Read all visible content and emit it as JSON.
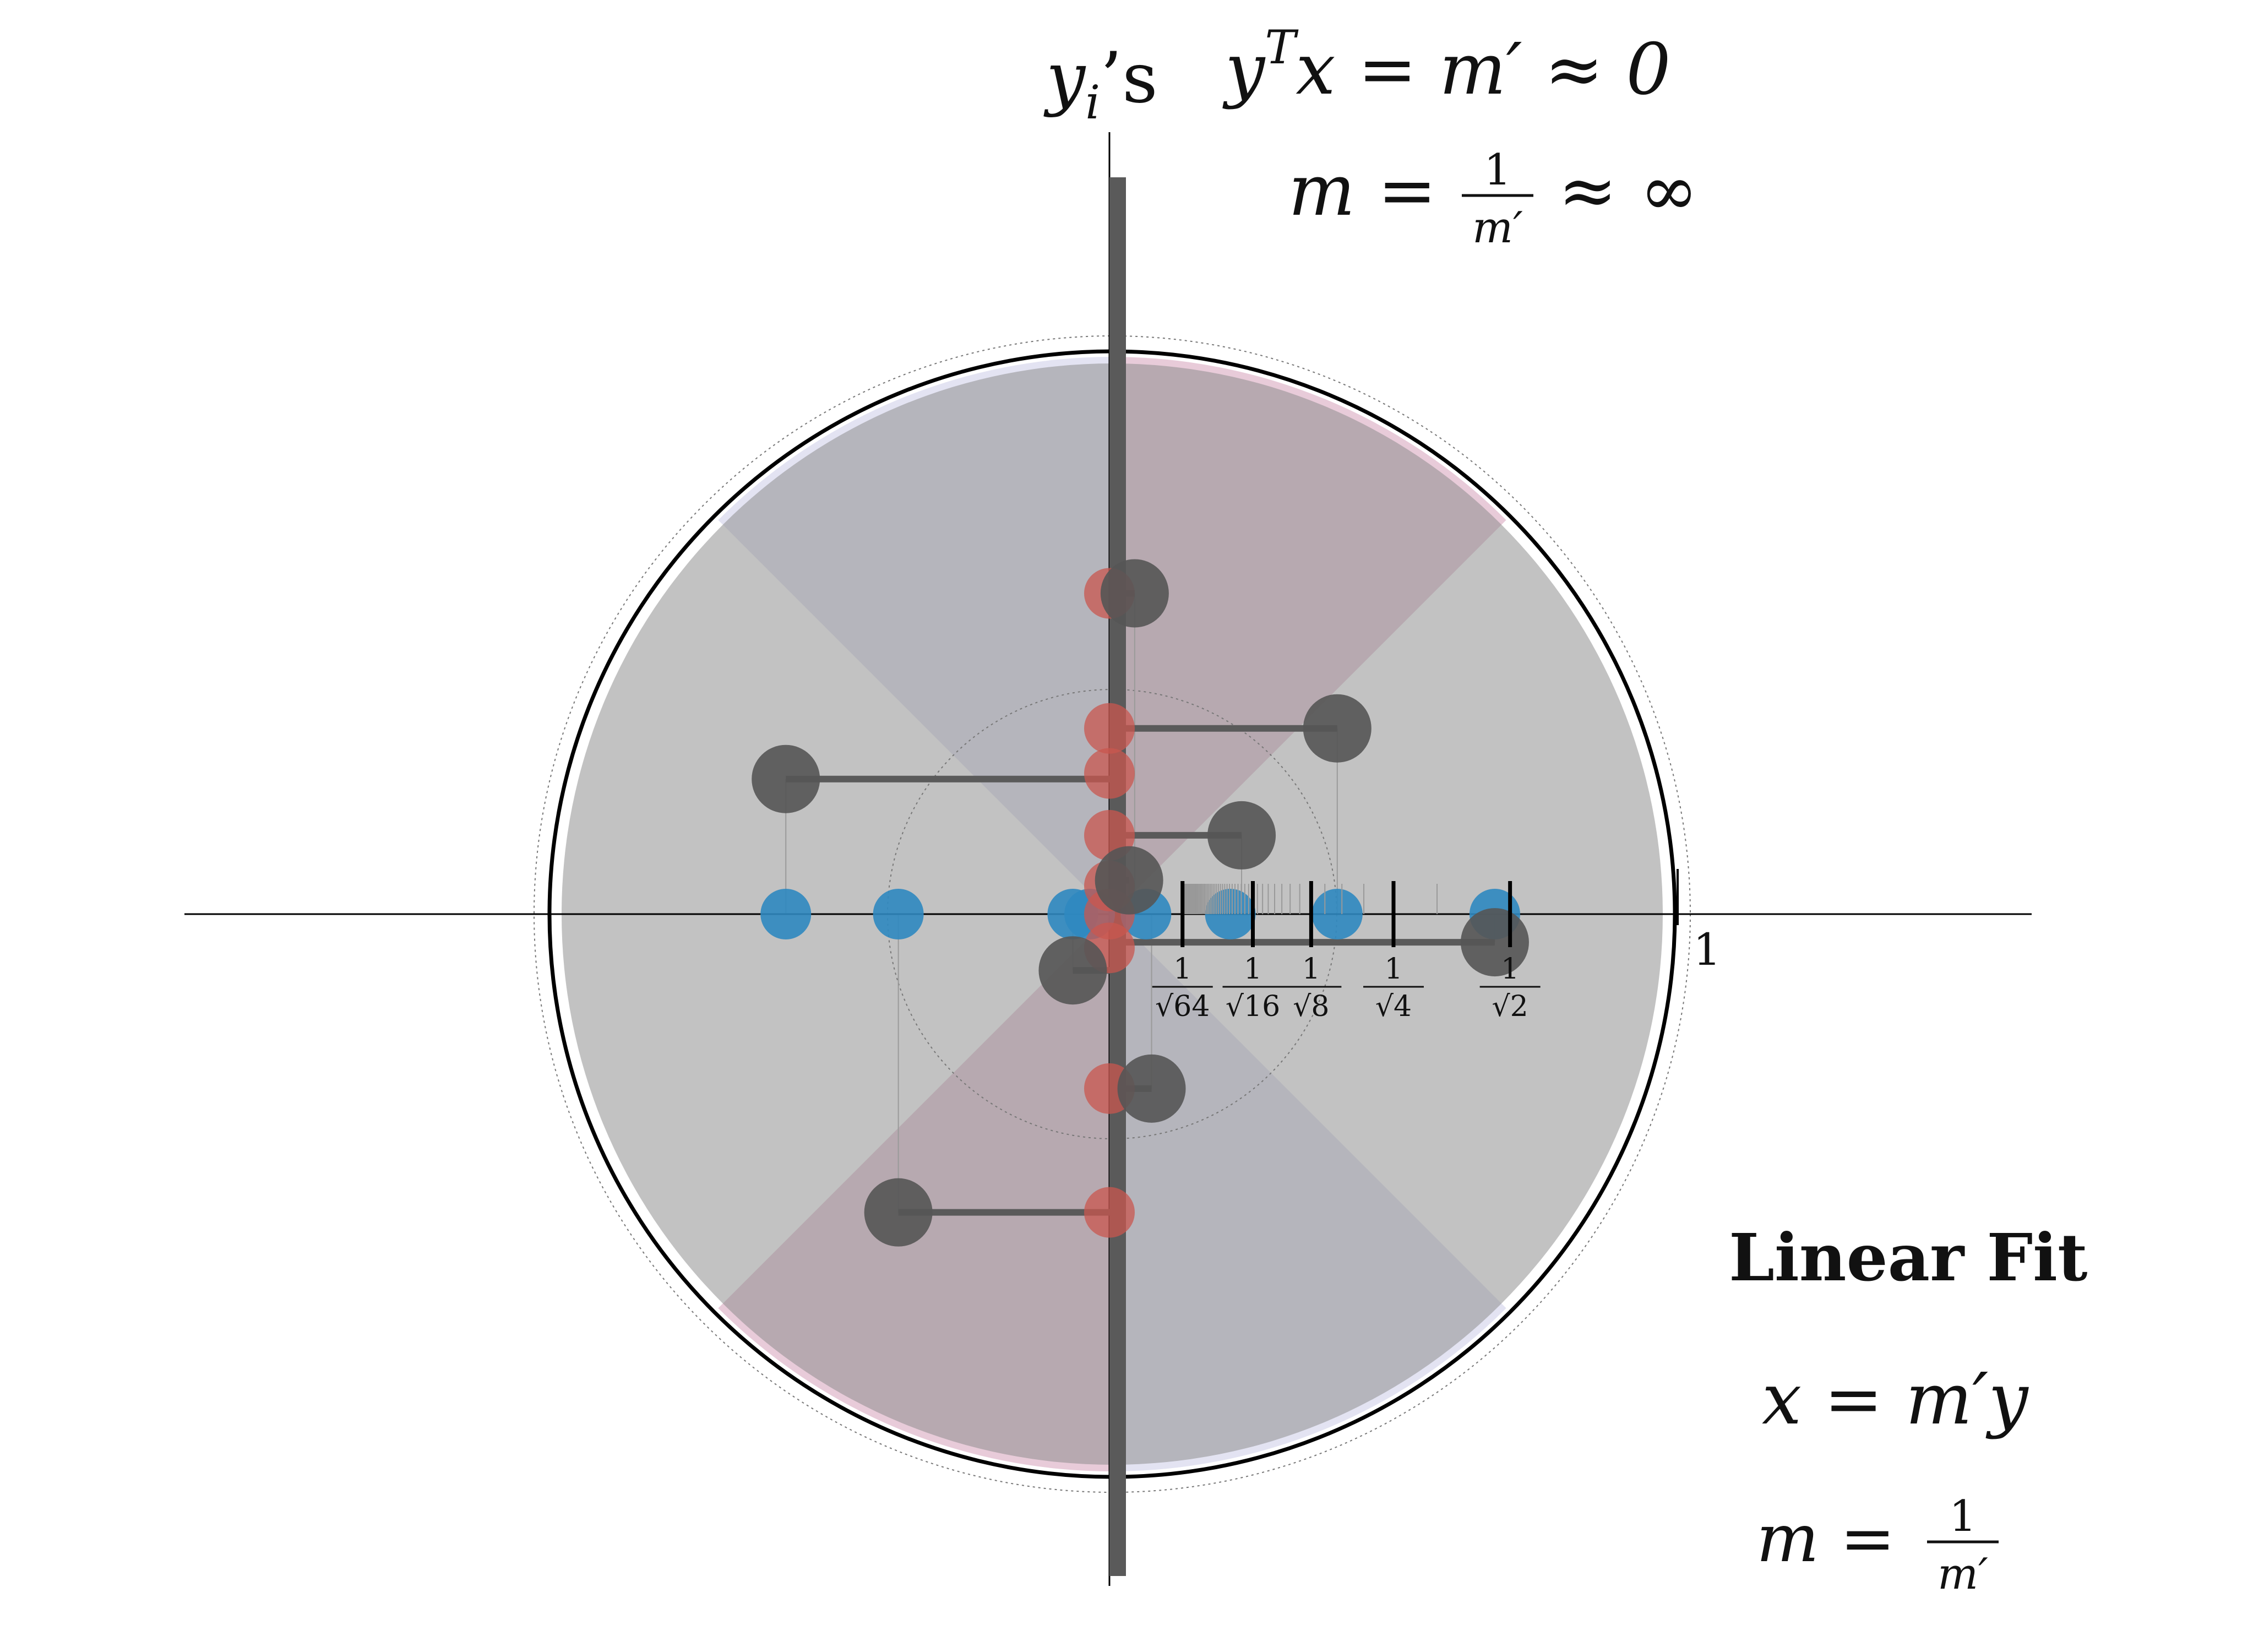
{
  "axis_label": {
    "base": "y",
    "sub": "i",
    "suffix": "’s"
  },
  "equation_top": {
    "line1": {
      "y": "y",
      "sup": "T",
      "rest": "x = m′ ≈ 0"
    },
    "line2": {
      "lhs": "m = ",
      "num": "1",
      "den": "m′",
      "rhs": "≈ ∞"
    }
  },
  "legend": {
    "title": "Linear Fit",
    "eq1": "x = m′y",
    "eq2": {
      "lhs": "m = ",
      "num": "1",
      "den": "m′"
    }
  },
  "scale": {
    "unit_label": "1",
    "ticks": [
      {
        "num": "1",
        "rad": "√64",
        "value": 0.125
      },
      {
        "num": "1",
        "rad": "√16",
        "value": 0.25
      },
      {
        "num": "1",
        "rad": "√8",
        "value": 0.3536
      },
      {
        "num": "1",
        "rad": "√4",
        "value": 0.5
      },
      {
        "num": "1",
        "rad": "√2",
        "value": 0.7071
      }
    ]
  },
  "colors": {
    "background": "#ffffff",
    "wedge_blue": "#e3e3f2",
    "wedge_pink": "#e8cbd9",
    "disk_gray": "#8a8a8a",
    "fit_line": "#5a5a5a",
    "blue_point": "#2f88c0",
    "red_point": "#c9574f",
    "gray_point": "#555555",
    "outline": "#000000"
  },
  "points": {
    "blue_x": [
      -0.58,
      -0.38,
      -0.07,
      -0.04,
      0.06,
      0.21,
      0.4,
      0.68
    ],
    "red_y": [
      0.57,
      0.33,
      0.25,
      0.14,
      0.05,
      0.0,
      -0.06,
      -0.31,
      -0.53
    ],
    "gray_xy": [
      [
        0.04,
        0.57
      ],
      [
        -0.58,
        0.24
      ],
      [
        0.4,
        0.33
      ],
      [
        0.23,
        0.14
      ],
      [
        0.03,
        0.06
      ],
      [
        -0.07,
        -0.1
      ],
      [
        0.68,
        -0.05
      ],
      [
        0.07,
        -0.31
      ],
      [
        -0.38,
        -0.53
      ]
    ]
  }
}
